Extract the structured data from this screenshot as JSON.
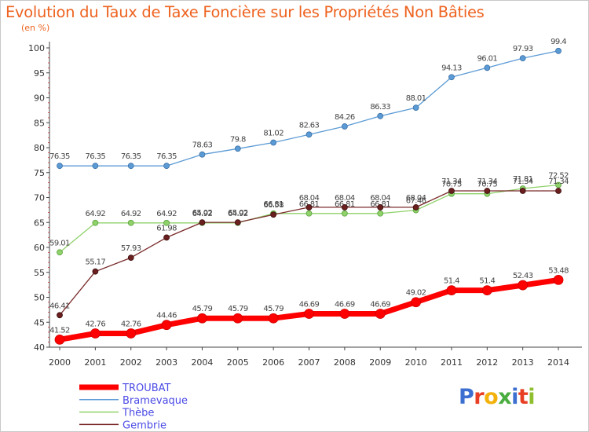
{
  "header": {
    "title": "Evolution du Taux de Taxe Foncière sur les Propriétés Non Bâties",
    "subtitle": "(en %)"
  },
  "logo": {
    "text": "Proxiti",
    "letter_colors": [
      "#3d6fd1",
      "#e83f24",
      "#f3b10b",
      "#49ad3f",
      "#3d6fd1",
      "#e83f24",
      "#8fbf2f"
    ]
  },
  "chart_data": {
    "type": "line",
    "title": "Evolution du Taux de Taxe Foncière sur les Propriétés Non Bâties",
    "ylabel": "(en %)",
    "x": [
      2000,
      2001,
      2002,
      2003,
      2004,
      2005,
      2006,
      2007,
      2008,
      2009,
      2010,
      2011,
      2012,
      2013,
      2014
    ],
    "ylim": [
      40,
      100
    ],
    "yticks": [
      40,
      45,
      50,
      55,
      60,
      65,
      70,
      75,
      80,
      85,
      90,
      95,
      100
    ],
    "grid": false,
    "legend_position": "bottom-left",
    "series": [
      {
        "name": "TROUBAT",
        "color": "#ff0000",
        "values": [
          41.52,
          42.76,
          42.76,
          44.46,
          45.79,
          45.79,
          45.79,
          46.69,
          46.69,
          46.69,
          49.02,
          51.4,
          51.4,
          52.43,
          53.48
        ],
        "labels": [
          "41.52",
          "42.76",
          "42.76",
          "44.46",
          "45.79",
          "45.79",
          "45.79",
          "46.69",
          "46.69",
          "46.69",
          "49.02",
          "51.4",
          "51.4",
          "52.43",
          "53.48"
        ]
      },
      {
        "name": "Bramevaque",
        "color": "#5b9bd5",
        "values": [
          76.35,
          76.35,
          76.35,
          76.35,
          78.63,
          79.8,
          81.02,
          82.63,
          84.26,
          86.33,
          88.01,
          94.13,
          96.01,
          97.93,
          99.4
        ],
        "labels": [
          "76.35",
          "76.35",
          "76.35",
          "76.35",
          "78.63",
          "79.8",
          "81.02",
          "82.63",
          "84.26",
          "86.33",
          "88.01",
          "94.13",
          "96.01",
          "97.93",
          "99.4"
        ]
      },
      {
        "name": "Thèbe",
        "color": "#8fd16a",
        "values": [
          59.01,
          64.92,
          64.92,
          64.92,
          64.92,
          64.92,
          66.81,
          66.81,
          66.81,
          66.81,
          67.46,
          70.75,
          70.75,
          71.81,
          72.52
        ],
        "labels": [
          "59.01",
          "64.92",
          "64.92",
          "64.92",
          "64.92",
          "64.92",
          "66.81",
          "66.81",
          "66.81",
          "66.81",
          "67.46",
          "70.75",
          "70.75",
          "71.81",
          "72.52"
        ]
      },
      {
        "name": "Gembrie",
        "color": "#7a2a2a",
        "values": [
          46.41,
          55.17,
          57.93,
          61.98,
          65.02,
          65.02,
          66.58,
          68.04,
          68.04,
          68.04,
          68.04,
          71.34,
          71.34,
          71.34,
          71.34
        ],
        "labels": [
          "46.41",
          "55.17",
          "57.93",
          "61.98",
          "65.02",
          "65.02",
          "66.58",
          "68.04",
          "68.04",
          "68.04",
          "68.04",
          "71.34",
          "71.34",
          "71.34",
          "71.34"
        ]
      }
    ]
  }
}
